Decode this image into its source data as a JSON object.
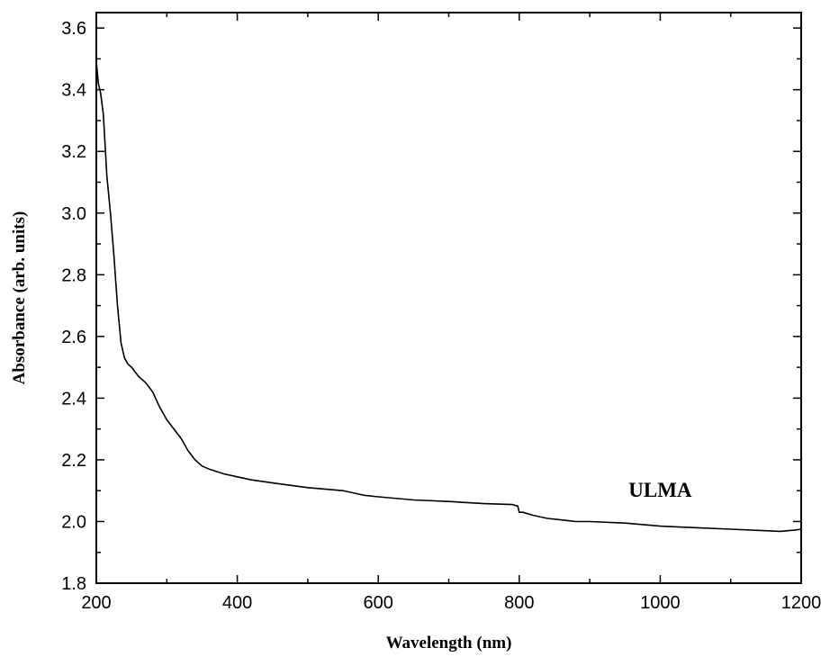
{
  "chart_data": {
    "type": "line",
    "title": "",
    "xlabel": "Wavelength (nm)",
    "ylabel": "Absorbance (arb. units)",
    "xlim": [
      200,
      1200
    ],
    "ylim": [
      1.8,
      3.65
    ],
    "x_ticks": [
      200,
      400,
      600,
      800,
      1000,
      1200
    ],
    "x_tick_labels": [
      "200",
      "400",
      "600",
      "800",
      "1000",
      "1200"
    ],
    "y_ticks": [
      1.8,
      2.0,
      2.2,
      2.4,
      2.6,
      2.8,
      3.0,
      3.2,
      3.4,
      3.6
    ],
    "y_tick_labels": [
      "1.8",
      "2.0",
      "2.2",
      "2.4",
      "2.6",
      "2.8",
      "3.0",
      "3.2",
      "3.4",
      "3.6"
    ],
    "grid": false,
    "legend": "none",
    "annotations": [
      {
        "text": "ULMA",
        "x": 1000,
        "y": 2.08
      }
    ],
    "series": [
      {
        "color": "#000000",
        "x": [
          200,
          203,
          206,
          210,
          215,
          220,
          225,
          230,
          235,
          240,
          245,
          250,
          260,
          270,
          280,
          290,
          300,
          310,
          320,
          330,
          340,
          345,
          350,
          360,
          380,
          400,
          420,
          450,
          500,
          550,
          560,
          570,
          580,
          600,
          650,
          700,
          750,
          790,
          798,
          800,
          805,
          820,
          840,
          860,
          880,
          900,
          950,
          1000,
          1050,
          1100,
          1150,
          1170,
          1190,
          1200
        ],
        "y": [
          3.49,
          3.42,
          3.39,
          3.32,
          3.12,
          3.0,
          2.86,
          2.7,
          2.58,
          2.53,
          2.51,
          2.5,
          2.47,
          2.45,
          2.42,
          2.37,
          2.33,
          2.3,
          2.27,
          2.23,
          2.2,
          2.19,
          2.18,
          2.17,
          2.155,
          2.145,
          2.135,
          2.125,
          2.11,
          2.1,
          2.095,
          2.09,
          2.085,
          2.08,
          2.07,
          2.065,
          2.058,
          2.055,
          2.05,
          2.03,
          2.03,
          2.02,
          2.01,
          2.005,
          2.0,
          2.0,
          1.995,
          1.985,
          1.98,
          1.975,
          1.97,
          1.968,
          1.972,
          1.975
        ]
      }
    ]
  }
}
